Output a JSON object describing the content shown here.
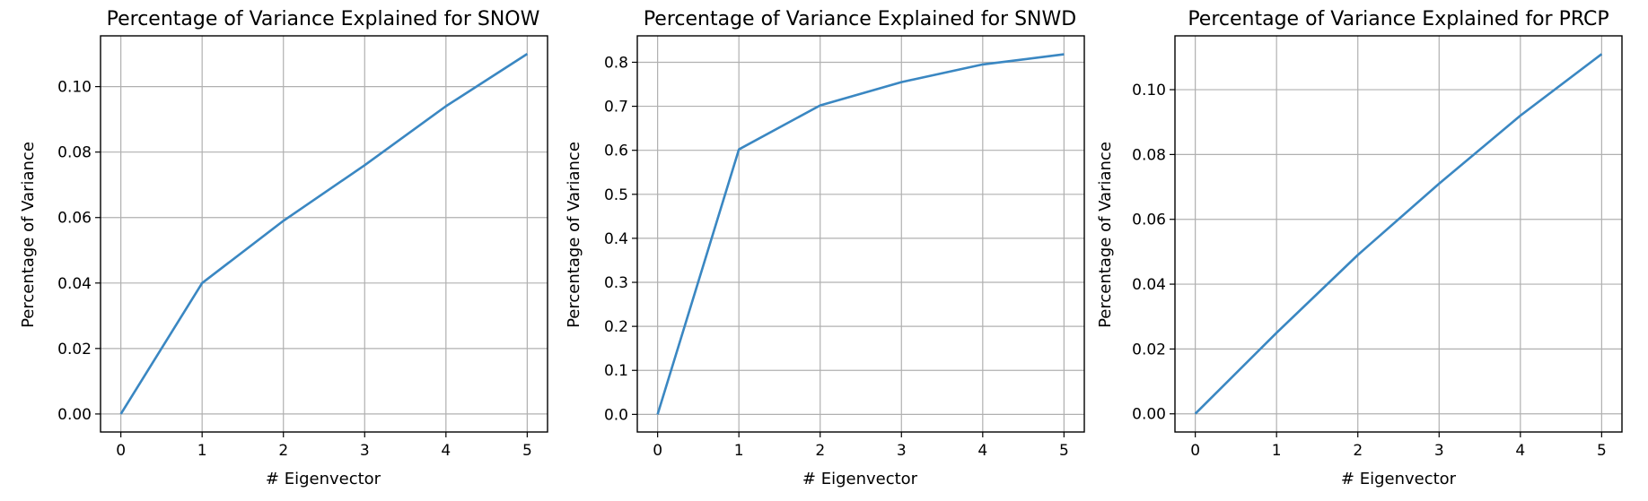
{
  "colors": {
    "line": "#3a87c2",
    "grid": "#b0b0b0",
    "axes": "#000000"
  },
  "chart_data": [
    {
      "type": "line",
      "title": "Percentage of Variance Explained for SNOW",
      "xlabel": "# Eigenvector",
      "ylabel": "Percentage of Variance",
      "xlim": [
        -0.25,
        5.25
      ],
      "ylim": [
        -0.0055,
        0.1155
      ],
      "xticks": [
        0,
        1,
        2,
        3,
        4,
        5
      ],
      "xtick_labels": [
        "0",
        "1",
        "2",
        "3",
        "4",
        "5"
      ],
      "yticks": [
        0.0,
        0.02,
        0.04,
        0.06,
        0.08,
        0.1
      ],
      "ytick_labels": [
        "0.00",
        "0.02",
        "0.04",
        "0.06",
        "0.08",
        "0.10"
      ],
      "grid": true,
      "series": [
        {
          "x": [
            0,
            1,
            2,
            3,
            4,
            5
          ],
          "values": [
            0.0,
            0.04,
            0.059,
            0.076,
            0.094,
            0.11
          ]
        }
      ]
    },
    {
      "type": "line",
      "title": "Percentage of Variance Explained for SNWD",
      "xlabel": "# Eigenvector",
      "ylabel": "Percentage of Variance",
      "xlim": [
        -0.25,
        5.25
      ],
      "ylim": [
        -0.04,
        0.86
      ],
      "xticks": [
        0,
        1,
        2,
        3,
        4,
        5
      ],
      "xtick_labels": [
        "0",
        "1",
        "2",
        "3",
        "4",
        "5"
      ],
      "yticks": [
        0.0,
        0.1,
        0.2,
        0.3,
        0.4,
        0.5,
        0.6,
        0.7,
        0.8
      ],
      "ytick_labels": [
        "0.0",
        "0.1",
        "0.2",
        "0.3",
        "0.4",
        "0.5",
        "0.6",
        "0.7",
        "0.8"
      ],
      "grid": true,
      "series": [
        {
          "x": [
            0,
            1,
            2,
            3,
            4,
            5
          ],
          "values": [
            0.0,
            0.602,
            0.702,
            0.755,
            0.795,
            0.818
          ]
        }
      ]
    },
    {
      "type": "line",
      "title": "Percentage of Variance Explained for PRCP",
      "xlabel": "# Eigenvector",
      "ylabel": "Percentage of Variance",
      "xlim": [
        -0.25,
        5.25
      ],
      "ylim": [
        -0.0056,
        0.1166
      ],
      "xticks": [
        0,
        1,
        2,
        3,
        4,
        5
      ],
      "xtick_labels": [
        "0",
        "1",
        "2",
        "3",
        "4",
        "5"
      ],
      "yticks": [
        0.0,
        0.02,
        0.04,
        0.06,
        0.08,
        0.1
      ],
      "ytick_labels": [
        "0.00",
        "0.02",
        "0.04",
        "0.06",
        "0.08",
        "0.10"
      ],
      "grid": true,
      "series": [
        {
          "x": [
            0,
            1,
            2,
            3,
            4,
            5
          ],
          "values": [
            0.0,
            0.025,
            0.049,
            0.071,
            0.092,
            0.111
          ]
        }
      ]
    }
  ]
}
